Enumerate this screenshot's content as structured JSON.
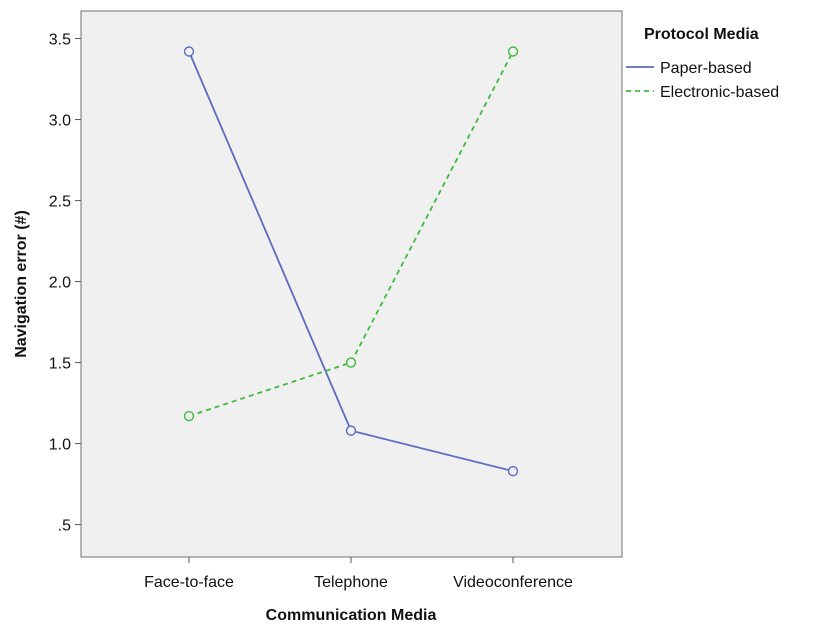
{
  "chart_data": {
    "type": "line",
    "categories": [
      "Face-to-face",
      "Telephone",
      "Videoconference"
    ],
    "series": [
      {
        "name": "Paper-based",
        "values": [
          3.42,
          1.08,
          0.83
        ],
        "color": "#5b6bbf",
        "line_style": "solid",
        "marker": "circle"
      },
      {
        "name": "Electronic-based",
        "values": [
          1.17,
          1.5,
          3.42
        ],
        "color": "#3dbb3d",
        "line_style": "dashed",
        "marker": "circle"
      }
    ],
    "xlabel": "Communication Media",
    "ylabel": "Navigation error (#)",
    "ylim": [
      0.3,
      3.67
    ],
    "yticks": [
      3.5,
      3.0,
      2.5,
      2.0,
      1.5,
      1.0,
      0.5
    ],
    "ytick_labels": [
      "3.5",
      "3.0",
      "2.5",
      "2.0",
      "1.5",
      "1.0",
      ".5"
    ],
    "legend": {
      "title": "Protocol Media",
      "position": "right"
    },
    "grid": false,
    "plot_background": "#f0f0f0"
  }
}
